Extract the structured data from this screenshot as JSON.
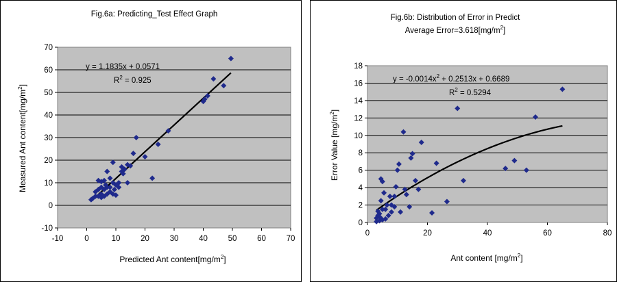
{
  "chart_data": [
    {
      "type": "scatter",
      "title": "Fig.6a: Predicting_Test Effect Graph",
      "xlabel": "Predicted Ant content[mg/m",
      "xlabel_sup": "2",
      "xlabel_end": "]",
      "ylabel": "Measured Ant content[mg/m",
      "ylabel_sup": "2",
      "ylabel_end": "]",
      "xlim": [
        -10,
        70
      ],
      "ylim": [
        -10,
        70
      ],
      "xticks": [
        -10,
        0,
        10,
        20,
        30,
        40,
        50,
        60,
        70
      ],
      "yticks": [
        -10,
        0,
        10,
        20,
        30,
        40,
        50,
        60,
        70
      ],
      "grid": "horizontal",
      "plot_bg": "#c0c0c0",
      "marker_color": "#1f2a8c",
      "trendline_color": "#000000",
      "equation": "y = 1.1835x + 0.0571",
      "r2": "R",
      "r2_sup": "2",
      "r2_val": " = 0.925",
      "trendline": {
        "slope": 1.1835,
        "intercept": 0.0571,
        "x_range": [
          1.5,
          49.5
        ]
      },
      "points": [
        [
          49.5,
          65
        ],
        [
          43.5,
          56
        ],
        [
          47,
          53
        ],
        [
          41.5,
          48.5
        ],
        [
          40.5,
          47
        ],
        [
          40,
          46
        ],
        [
          28,
          33
        ],
        [
          24.5,
          27
        ],
        [
          22.5,
          12
        ],
        [
          20,
          21.5
        ],
        [
          17,
          30
        ],
        [
          16,
          23
        ],
        [
          15,
          17.5
        ],
        [
          14,
          18
        ],
        [
          13,
          16
        ],
        [
          12,
          17
        ],
        [
          12,
          15
        ],
        [
          14,
          10
        ],
        [
          9,
          19
        ],
        [
          7,
          15
        ],
        [
          8,
          12
        ],
        [
          9,
          10
        ],
        [
          10,
          9
        ],
        [
          11,
          8
        ],
        [
          6,
          11
        ],
        [
          5,
          10.5
        ],
        [
          4,
          11
        ],
        [
          5,
          8
        ],
        [
          6,
          7
        ],
        [
          7,
          8
        ],
        [
          8,
          6
        ],
        [
          9,
          5
        ],
        [
          10,
          4.5
        ],
        [
          7,
          5
        ],
        [
          6,
          4
        ],
        [
          5,
          5
        ],
        [
          4,
          4
        ],
        [
          3,
          4
        ],
        [
          2,
          3
        ],
        [
          1.5,
          2.5
        ],
        [
          3,
          6
        ],
        [
          4,
          7
        ],
        [
          5,
          3.5
        ],
        [
          6.5,
          9
        ],
        [
          8,
          8
        ],
        [
          9.5,
          7
        ],
        [
          11,
          10
        ],
        [
          12.5,
          14
        ]
      ]
    },
    {
      "type": "scatter",
      "title": "Fig.6b: Distribution of Error in Predict",
      "subtitle": "Average Error=3.618[mg/m",
      "subtitle_sup": "2",
      "subtitle_end": "]",
      "xlabel": "Ant content [mg/m",
      "xlabel_sup": "2",
      "xlabel_end": "]",
      "ylabel": "Error Value [mg/m",
      "ylabel_sup": "2",
      "ylabel_end": "]",
      "xlim": [
        0,
        80
      ],
      "ylim": [
        0,
        18
      ],
      "xticks": [
        0,
        20,
        40,
        60,
        80
      ],
      "yticks": [
        0,
        2,
        4,
        6,
        8,
        10,
        12,
        14,
        16,
        18
      ],
      "grid": "horizontal",
      "plot_bg": "#c0c0c0",
      "marker_color": "#1f2a8c",
      "trendline_color": "#000000",
      "equation_pre": "y = -0.0014x",
      "equation_sup": "2",
      "equation_post": " + 0.2513x + 0.6689",
      "r2": "R",
      "r2_sup": "2",
      "r2_val": " = 0.5294",
      "trendline": {
        "a": -0.0014,
        "b": 0.2513,
        "c": 0.6689,
        "x_range": [
          3,
          65
        ]
      },
      "points": [
        [
          65,
          15.3
        ],
        [
          56,
          12.1
        ],
        [
          53,
          6
        ],
        [
          49,
          7.1
        ],
        [
          46,
          6.2
        ],
        [
          32,
          4.8
        ],
        [
          30,
          13.1
        ],
        [
          26.5,
          2.4
        ],
        [
          23,
          6.8
        ],
        [
          21.5,
          1.1
        ],
        [
          18,
          9.2
        ],
        [
          17,
          3.8
        ],
        [
          16,
          4.8
        ],
        [
          15,
          7.9
        ],
        [
          14.5,
          7.4
        ],
        [
          14,
          1.8
        ],
        [
          12.5,
          3.8
        ],
        [
          12,
          10.4
        ],
        [
          11,
          1.2
        ],
        [
          10.5,
          6.7
        ],
        [
          10,
          6
        ],
        [
          9.5,
          4.1
        ],
        [
          9,
          3
        ],
        [
          8,
          2
        ],
        [
          7.5,
          3
        ],
        [
          7,
          0.8
        ],
        [
          6.5,
          2
        ],
        [
          6,
          1.5
        ],
        [
          5.5,
          3.4
        ],
        [
          5,
          4.7
        ],
        [
          4.5,
          5
        ],
        [
          4.5,
          2.5
        ],
        [
          5,
          1.5
        ],
        [
          4,
          1
        ],
        [
          3.5,
          0.8
        ],
        [
          3,
          0.5
        ],
        [
          3,
          0.1
        ],
        [
          4,
          0.2
        ],
        [
          5,
          0.3
        ],
        [
          3.5,
          1.3
        ],
        [
          4.2,
          0.6
        ],
        [
          6,
          0.4
        ],
        [
          8,
          1.2
        ],
        [
          9,
          1.8
        ],
        [
          13,
          3.2
        ]
      ]
    }
  ]
}
